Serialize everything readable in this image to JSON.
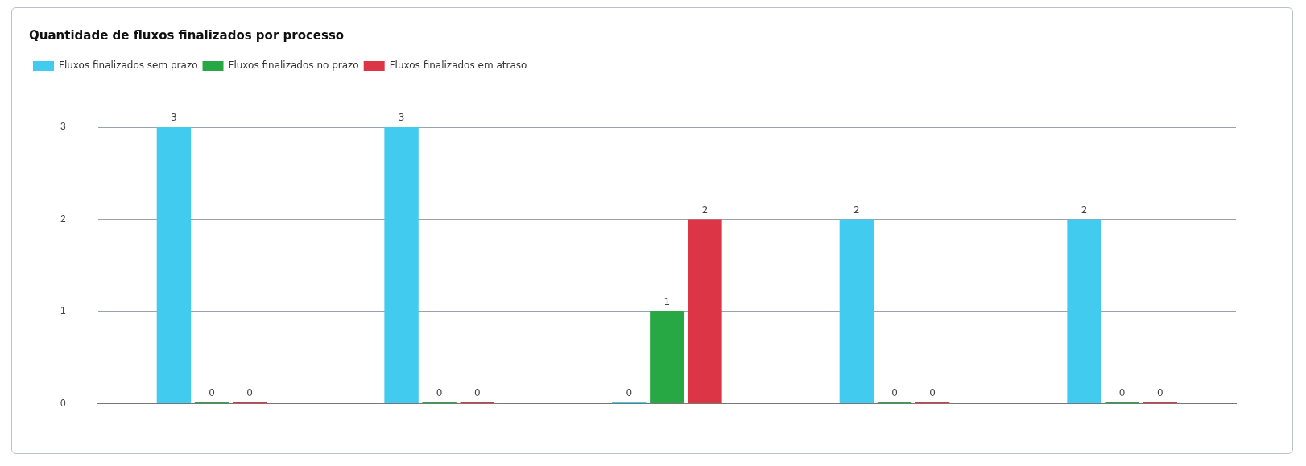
{
  "chart_data": {
    "type": "bar",
    "title": "Quantidade de fluxos finalizados por processo",
    "categories": [
      null,
      null,
      null,
      null,
      null
    ],
    "series": [
      {
        "name": "Fluxos finalizados sem prazo",
        "color": "#41cbef",
        "values": [
          3,
          3,
          0,
          2,
          2
        ]
      },
      {
        "name": "Fluxos finalizados no prazo",
        "color": "#28a745",
        "values": [
          0,
          0,
          1,
          0,
          0
        ]
      },
      {
        "name": "Fluxos finalizados em atraso",
        "color": "#dc3545",
        "values": [
          0,
          0,
          2,
          0,
          0
        ]
      }
    ],
    "ylim": [
      0,
      3
    ],
    "yticks": [
      0,
      1,
      2,
      3
    ],
    "grid": "y",
    "legend": "top left",
    "data_labels": true
  }
}
